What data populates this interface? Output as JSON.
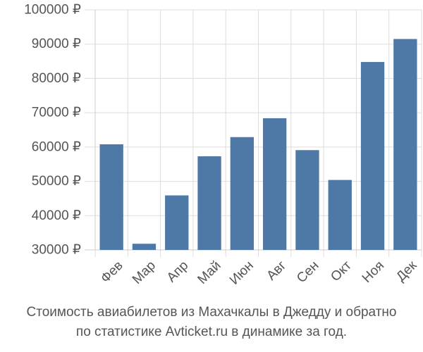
{
  "chart_data": {
    "type": "bar",
    "categories": [
      "Фев",
      "Мар",
      "Апр",
      "Май",
      "Июн",
      "Авг",
      "Сен",
      "Окт",
      "Ноя",
      "Дек"
    ],
    "values": [
      60800,
      31800,
      45900,
      57300,
      62900,
      68400,
      59100,
      50400,
      84800,
      91500
    ],
    "ylim": [
      30000,
      100000
    ],
    "y_ticks": [
      30000,
      40000,
      50000,
      60000,
      70000,
      80000,
      90000,
      100000
    ],
    "y_tick_labels": [
      "30000 ₽",
      "40000 ₽",
      "50000 ₽",
      "60000 ₽",
      "70000 ₽",
      "80000 ₽",
      "90000 ₽",
      "100000 ₽"
    ],
    "bar_color": "#4e79a7",
    "grid": true,
    "title": "",
    "xlabel": "",
    "ylabel": ""
  },
  "caption": {
    "line1": "Стоимость авиабилетов из Махачкалы в Джедду и обратно",
    "line2": "по статистике Avticket.ru в динамике за год."
  }
}
